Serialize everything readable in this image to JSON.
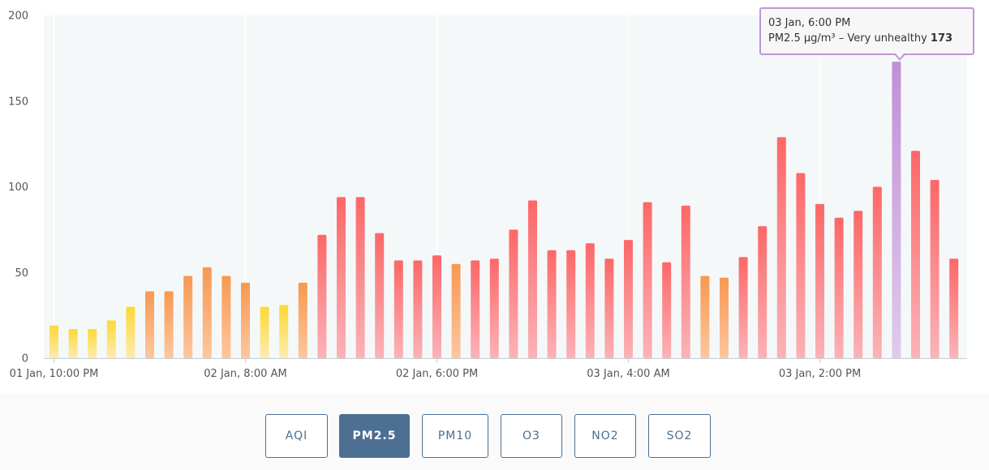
{
  "chart_data": {
    "type": "bar",
    "title": "",
    "series": [
      {
        "values": [
          19,
          17,
          17,
          22,
          30,
          39,
          39,
          48,
          53,
          48,
          44,
          30,
          31,
          44,
          72,
          94,
          94,
          73,
          57,
          57,
          60,
          55,
          57,
          58,
          75,
          92,
          63,
          63,
          67,
          58,
          69,
          91,
          56,
          89,
          48,
          47,
          59,
          77,
          129,
          108,
          90,
          82,
          86,
          100,
          173,
          121,
          104,
          58
        ]
      }
    ],
    "x_tick_labels": [
      "01 Jan, 10:00 PM",
      "02 Jan, 8:00 AM",
      "02 Jan, 6:00 PM",
      "03 Jan, 4:00 AM",
      "03 Jan, 2:00 PM"
    ],
    "y_ticks": [
      0,
      50,
      100,
      150,
      200
    ],
    "ylim": [
      0,
      200
    ],
    "grid": "vertical",
    "highlight_index": 44,
    "colors": {
      "yellow": "#fce049",
      "orange": "#f89c55",
      "red": "#fd6a6a",
      "highlight": "#c28fd6",
      "plot_background": "#f5f8f9"
    }
  },
  "tooltip": {
    "time": "03 Jan, 6:00 PM",
    "label": "PM2.5 µg/m³ – Very unhealthy",
    "value": "173"
  },
  "buttons": [
    {
      "label": "AQI",
      "active": false
    },
    {
      "label": "PM2.5",
      "active": true
    },
    {
      "label": "PM10",
      "active": false
    },
    {
      "label": "O3",
      "active": false
    },
    {
      "label": "NO2",
      "active": false
    },
    {
      "label": "SO2",
      "active": false
    }
  ]
}
